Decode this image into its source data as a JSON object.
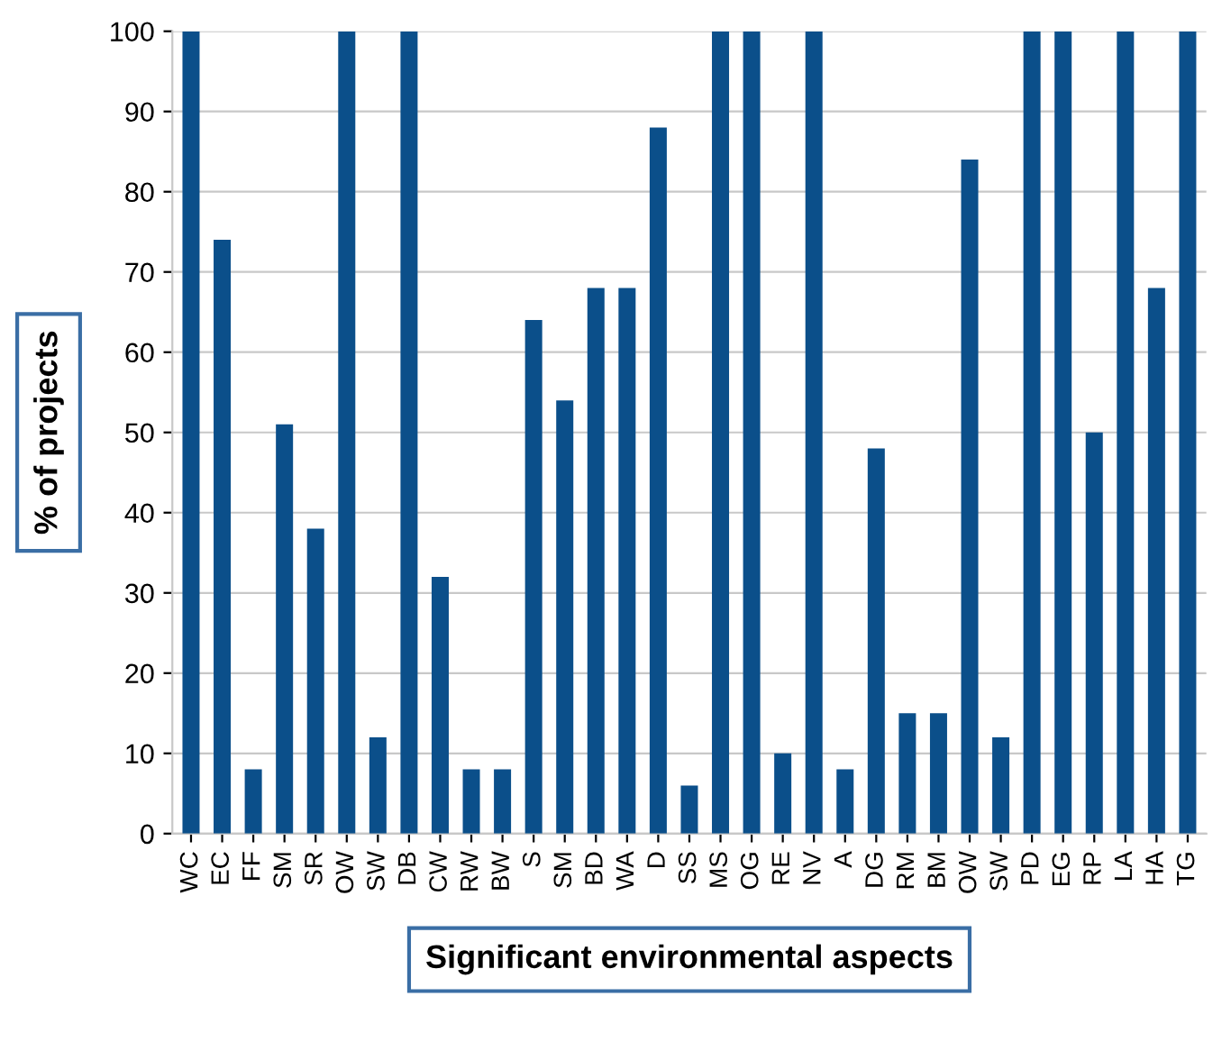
{
  "chart_data": {
    "type": "bar",
    "xlabel": "Significant environmental aspects",
    "ylabel": "% of projects",
    "categories": [
      "WC",
      "EC",
      "FF",
      "SM",
      "SR",
      "OW",
      "SW",
      "DB",
      "CW",
      "RW",
      "BW",
      "S",
      "SM",
      "BD",
      "WA",
      "D",
      "SS",
      "MS",
      "OG",
      "RE",
      "NV",
      "A",
      "DG",
      "RM",
      "BM",
      "OW",
      "SW",
      "PD",
      "EG",
      "RP",
      "LA",
      "HA",
      "TG"
    ],
    "values": [
      100,
      74,
      8,
      51,
      38,
      100,
      12,
      100,
      32,
      8,
      8,
      64,
      54,
      68,
      68,
      88,
      6,
      100,
      100,
      10,
      100,
      8,
      48,
      15,
      15,
      84,
      12,
      100,
      100,
      50,
      100,
      68,
      100
    ],
    "color": "#0b4f8a",
    "ylim": [
      0,
      100
    ],
    "yticks": [
      0,
      10,
      20,
      30,
      40,
      50,
      60,
      70,
      80,
      90,
      100
    ],
    "grid": "y"
  }
}
